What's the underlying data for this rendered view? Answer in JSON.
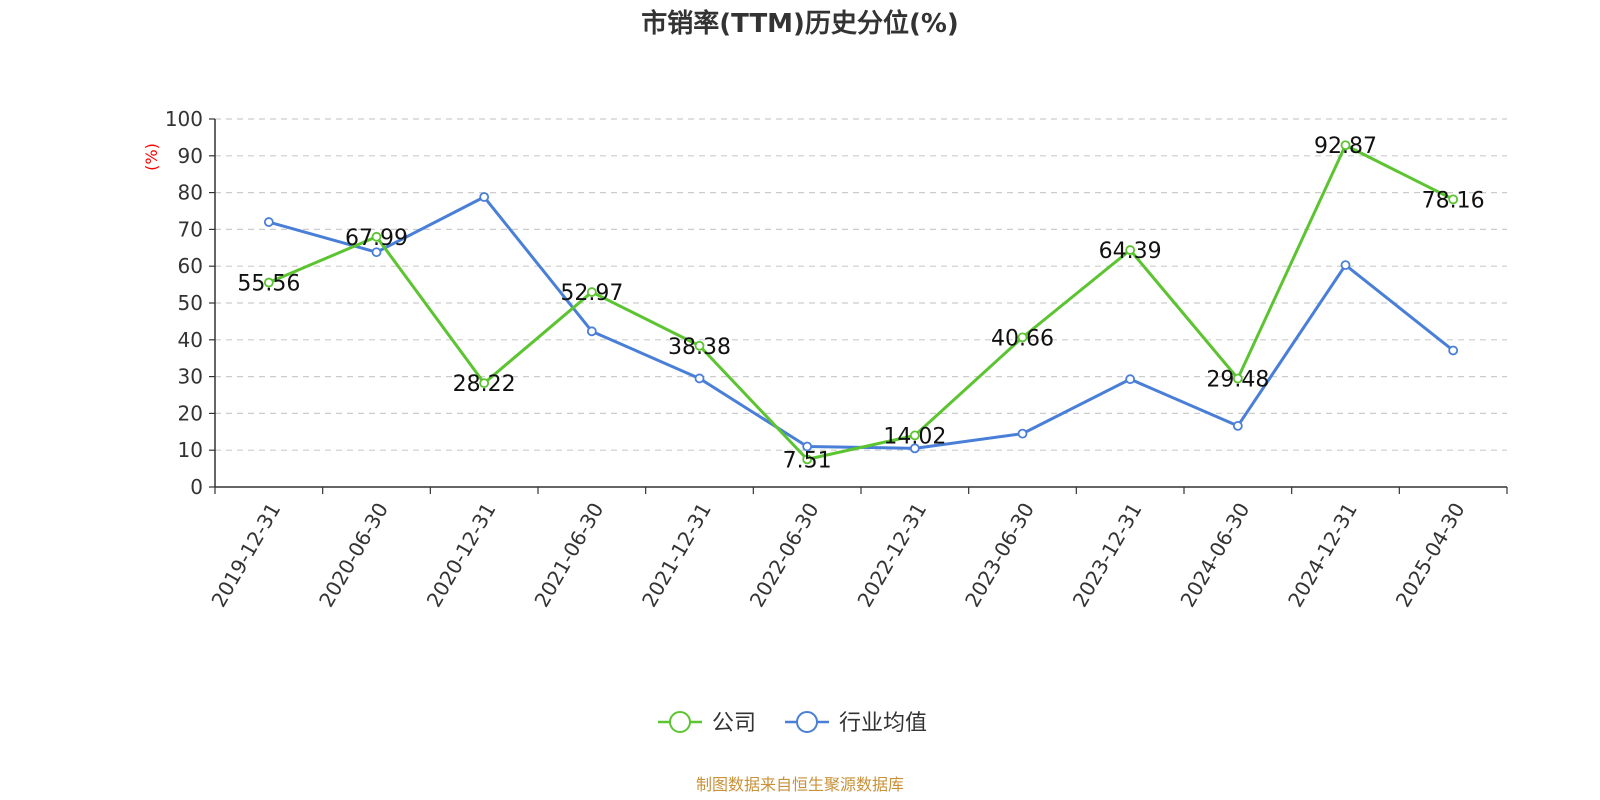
{
  "chart_data": {
    "type": "line",
    "title": "市销率(TTM)历史分位(%)",
    "ylabel": "(%)",
    "ylim": [
      0,
      100
    ],
    "yticks": [
      0,
      10,
      20,
      30,
      40,
      50,
      60,
      70,
      80,
      90,
      100
    ],
    "categories": [
      "2019-12-31",
      "2020-06-30",
      "2020-12-31",
      "2021-06-30",
      "2021-12-31",
      "2022-06-30",
      "2022-12-31",
      "2023-06-30",
      "2023-12-31",
      "2024-06-30",
      "2024-12-31",
      "2025-04-30"
    ],
    "series": [
      {
        "name": "公司",
        "color": "#5cc431",
        "values": [
          55.56,
          67.99,
          28.22,
          52.97,
          38.38,
          7.51,
          14.02,
          40.66,
          64.39,
          29.48,
          92.87,
          78.16
        ],
        "show_labels": true
      },
      {
        "name": "行业均值",
        "color": "#4a7fd8",
        "values": [
          72.0,
          63.8,
          78.8,
          42.3,
          29.5,
          11.0,
          10.5,
          14.5,
          29.3,
          16.6,
          60.3,
          37.1
        ],
        "show_labels": false
      }
    ],
    "grid": true,
    "legend": "bottom-center",
    "source": "制图数据来自恒生聚源数据库",
    "unit_color": "#ff0000",
    "source_color": "#c8913a"
  }
}
